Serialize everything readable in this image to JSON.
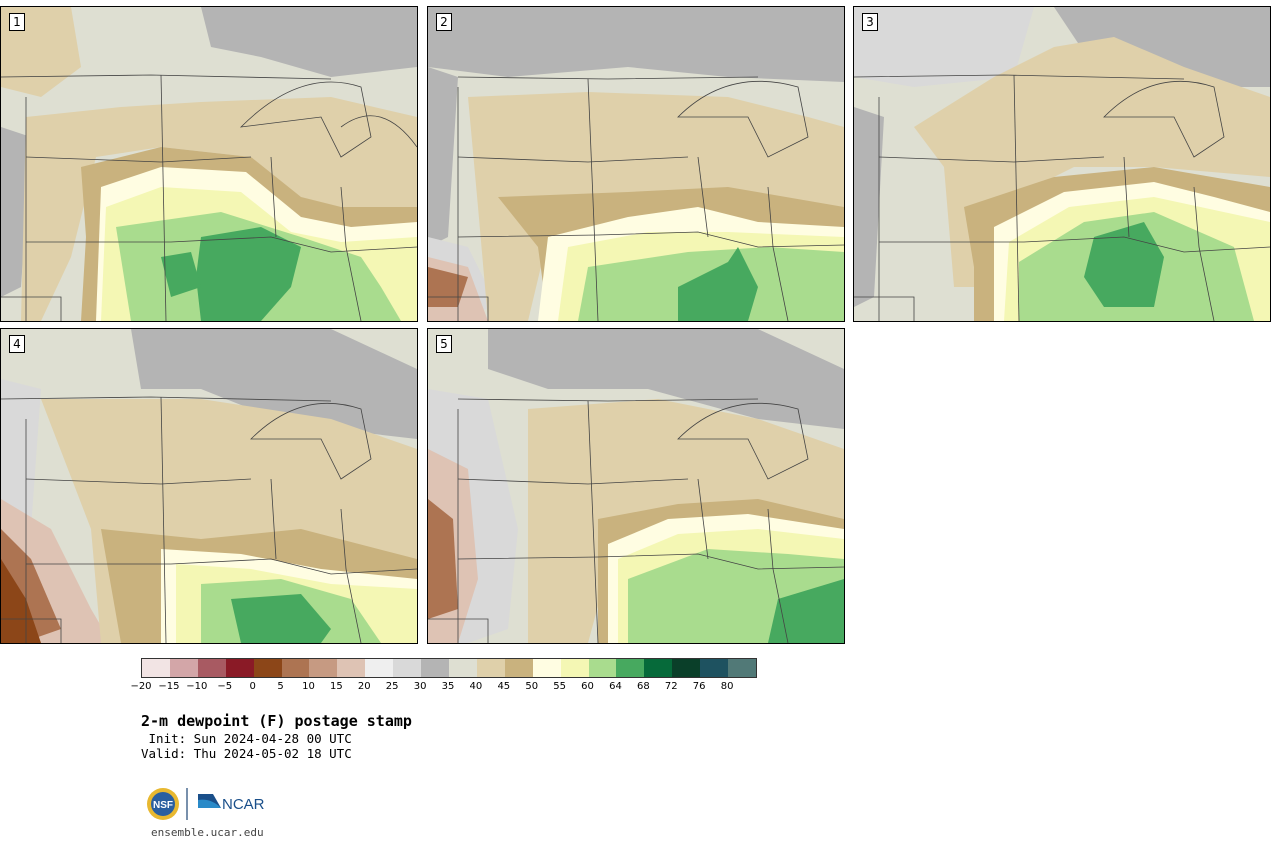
{
  "panels": [
    {
      "label": "1"
    },
    {
      "label": "2"
    },
    {
      "label": "3"
    },
    {
      "label": "4"
    },
    {
      "label": "5"
    }
  ],
  "colorbar": {
    "colors": [
      "#f2e4e4",
      "#d3a6a8",
      "#a85a62",
      "#8a1a26",
      "#8c4618",
      "#ad7452",
      "#c69a82",
      "#dec3b4",
      "#efefef",
      "#d9d9d9",
      "#b4b4b4",
      "#dedfd2",
      "#dfd0aa",
      "#c9b27e",
      "#fffde2",
      "#f4f7b4",
      "#a9dc8e",
      "#47a95f",
      "#066a3a",
      "#0a3f29",
      "#1e5260",
      "#517977"
    ],
    "tick_labels": [
      "−20",
      "−15",
      "−10",
      "−5",
      "0",
      "5",
      "10",
      "15",
      "20",
      "25",
      "30",
      "35",
      "40",
      "45",
      "50",
      "55",
      "60",
      "64",
      "68",
      "72",
      "76",
      "80"
    ]
  },
  "title": "2-m dewpoint (F) postage stamp",
  "init": " Init: Sun 2024-04-28 00 UTC",
  "valid": "Valid: Thu 2024-05-02 18 UTC",
  "logos": {
    "nsf_text": "NSF",
    "ncar_text": "NCAR"
  },
  "site": "ensemble.ucar.edu",
  "field_colors": {
    "gray_dark": "#b4b4b4",
    "gray_light": "#d9d9d9",
    "tan_pale": "#dedfd2",
    "tan": "#dfd0aa",
    "tan_dark": "#c9b27e",
    "cream": "#fffde2",
    "yellow": "#f4f7b4",
    "green_light": "#a9dc8e",
    "green": "#47a95f",
    "brown": "#ad7452",
    "brown_light": "#dec3b4"
  }
}
